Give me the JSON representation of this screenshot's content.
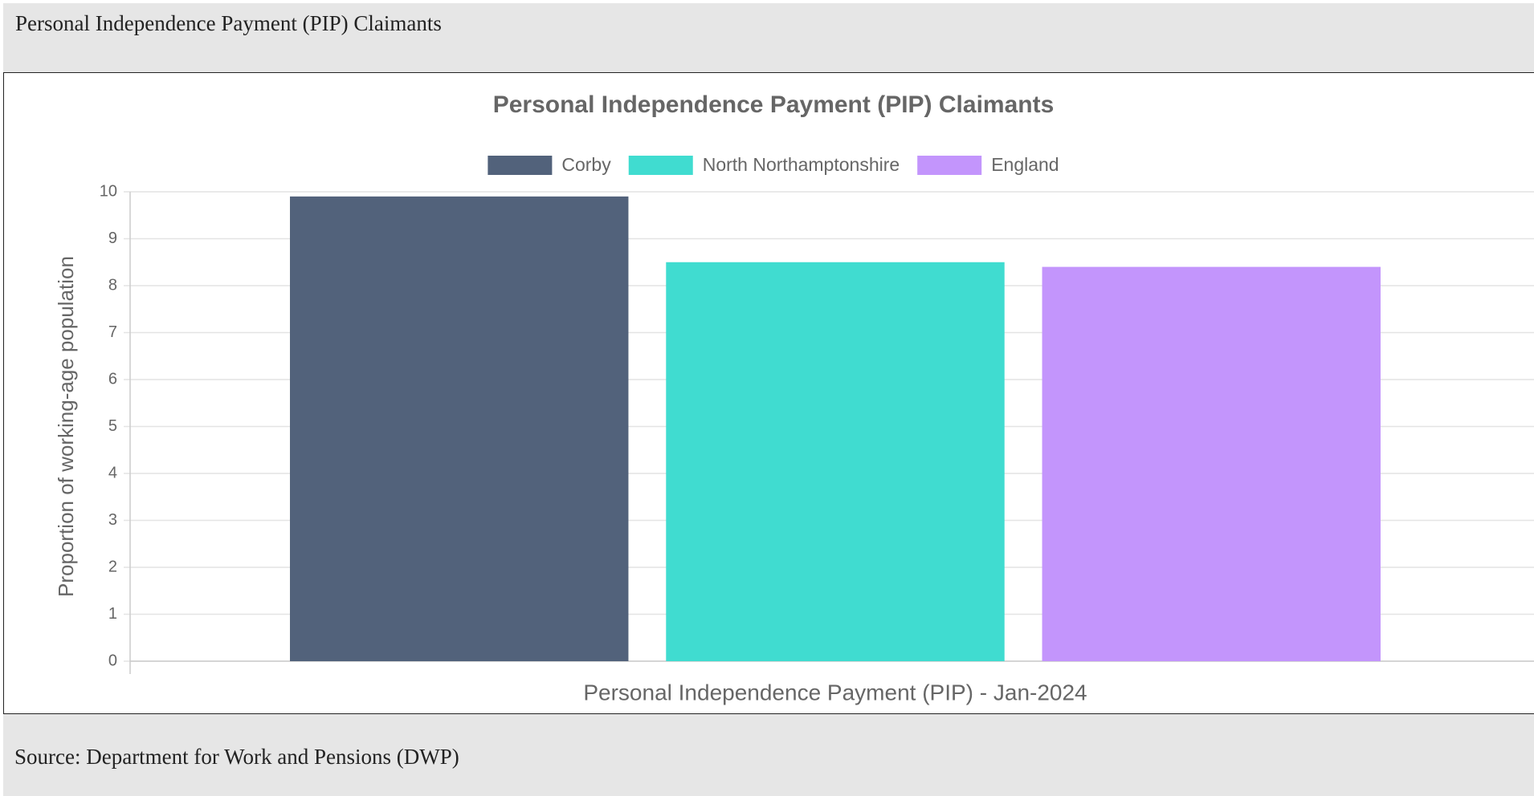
{
  "header": {
    "title": "Personal Independence Payment (PIP) Claimants"
  },
  "chart_data": {
    "type": "bar",
    "title": "Personal Independence Payment (PIP) Claimants",
    "categories": [
      "Personal Independence Payment (PIP) - Jan-2024"
    ],
    "series": [
      {
        "name": "Corby",
        "color": "#52627b",
        "values": [
          9.9
        ]
      },
      {
        "name": "North Northamptonshire",
        "color": "#40dcd0",
        "values": [
          8.5
        ]
      },
      {
        "name": "England",
        "color": "#c395fc",
        "values": [
          8.4
        ]
      }
    ],
    "ylabel": "Proportion of working-age population",
    "ylim": [
      0,
      10
    ],
    "yticks": [
      0,
      1,
      2,
      3,
      4,
      5,
      6,
      7,
      8,
      9,
      10
    ],
    "grid": true,
    "legend": "top"
  },
  "footer": {
    "source": "Source: Department for Work and Pensions (DWP)"
  }
}
